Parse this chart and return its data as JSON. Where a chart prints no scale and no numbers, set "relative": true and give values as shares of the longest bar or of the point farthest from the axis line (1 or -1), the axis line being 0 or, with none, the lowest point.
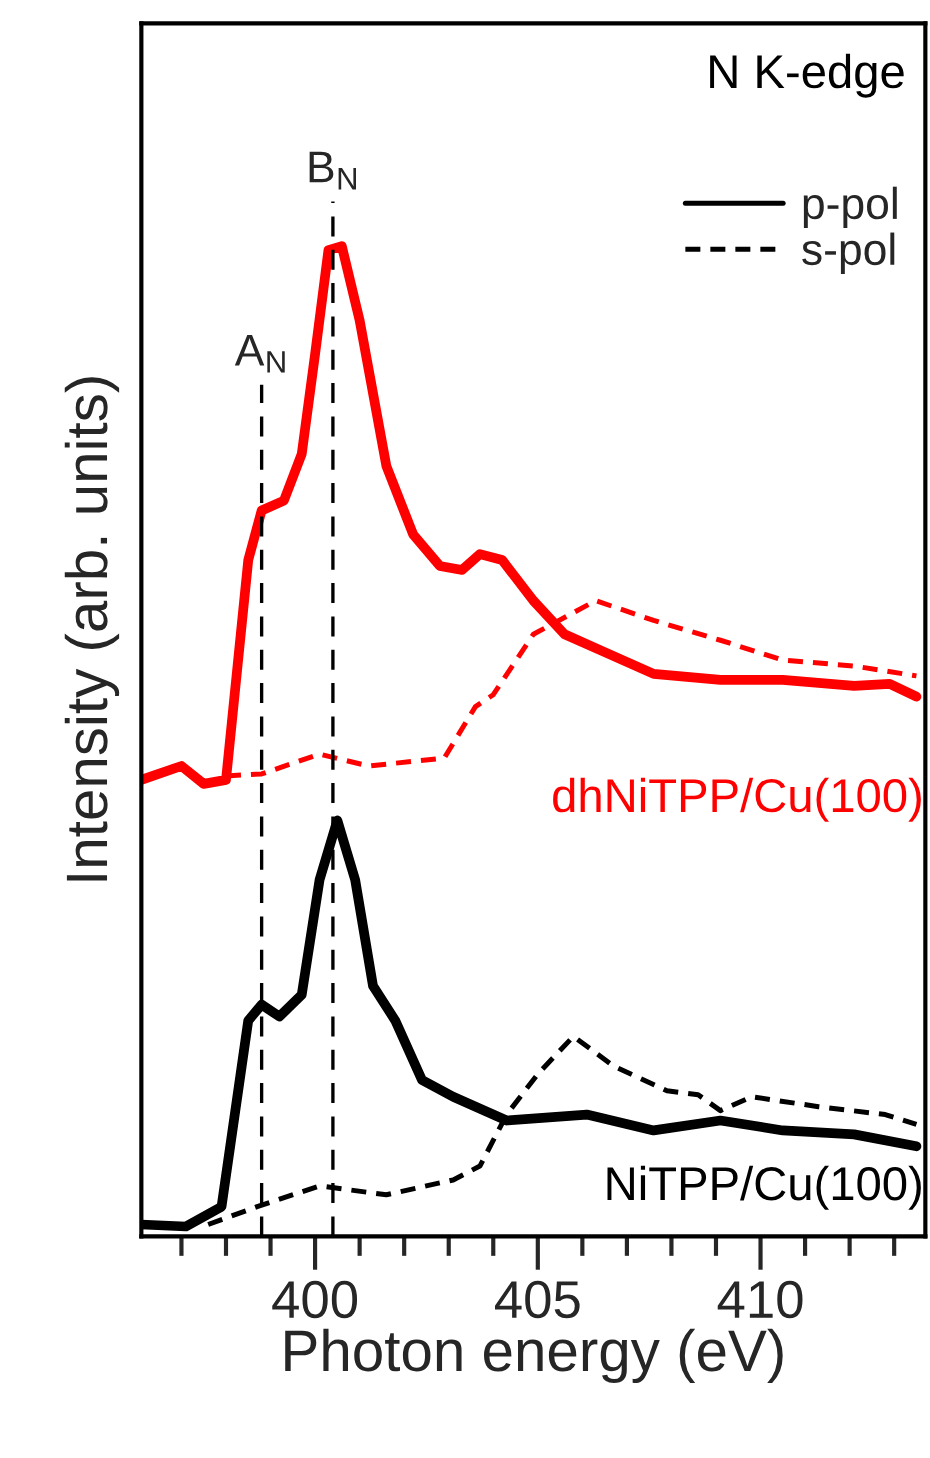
{
  "chart_data": {
    "type": "line",
    "relative": true,
    "xlabel": "Photon energy (eV)",
    "ylabel": "Intensity (arb. units)",
    "xlim": [
      396.1,
      413.7
    ],
    "xticks": [
      {
        "value": 397,
        "label": null
      },
      {
        "value": 398,
        "label": null
      },
      {
        "value": 399,
        "label": null
      },
      400,
      {
        "value": 401,
        "label": null
      },
      {
        "value": 402,
        "label": null
      },
      {
        "value": 403,
        "label": null
      },
      {
        "value": 404,
        "label": null
      },
      405,
      {
        "value": 406,
        "label": null
      },
      {
        "value": 407,
        "label": null
      },
      {
        "value": 408,
        "label": null
      },
      {
        "value": 409,
        "label": null
      },
      410,
      {
        "value": 411,
        "label": null
      },
      {
        "value": 412,
        "label": null
      },
      {
        "value": 413,
        "label": null
      }
    ],
    "grid": false,
    "legend": "top right",
    "marker": "none",
    "series": [
      {
        "color": "#ff0000",
        "line_style": "solid",
        "x": [
          396.1,
          397.0,
          397.5,
          398.0,
          398.5,
          398.8,
          399.3,
          399.7,
          400.0,
          400.3,
          400.6,
          401.0,
          401.6,
          402.2,
          402.8,
          403.3,
          403.7,
          404.2,
          404.9,
          405.6,
          406.4,
          407.6,
          409.1,
          410.5,
          412.1,
          412.9,
          413.5
        ],
        "values": [
          0.461,
          0.475,
          0.457,
          0.461,
          0.683,
          0.733,
          0.743,
          0.79,
          0.891,
          0.996,
          1.0,
          0.925,
          0.778,
          0.709,
          0.677,
          0.673,
          0.689,
          0.683,
          0.642,
          0.608,
          0.592,
          0.568,
          0.562,
          0.562,
          0.556,
          0.558,
          0.545
        ]
      },
      {
        "color": "#ff0000",
        "line_style": "dashed",
        "x": [
          398.0,
          398.8,
          400.1,
          401.2,
          402.9,
          403.6,
          404.0,
          404.9,
          406.3,
          407.6,
          409.1,
          410.5,
          412.1,
          413.5
        ],
        "values": [
          0.465,
          0.467,
          0.487,
          0.475,
          0.483,
          0.535,
          0.547,
          0.608,
          0.642,
          0.622,
          0.602,
          0.582,
          0.576,
          0.566
        ]
      },
      {
        "name": "p-pol",
        "color": "#000000",
        "line_style": "solid",
        "x": [
          396.1,
          397.1,
          397.9,
          398.5,
          398.8,
          399.2,
          399.7,
          400.1,
          400.5,
          400.9,
          401.3,
          401.8,
          402.4,
          403.1,
          404.3,
          406.1,
          407.6,
          409.1,
          410.5,
          412.1,
          413.5
        ],
        "values": [
          0.012,
          0.01,
          0.03,
          0.218,
          0.234,
          0.222,
          0.244,
          0.36,
          0.42,
          0.36,
          0.253,
          0.218,
          0.158,
          0.141,
          0.117,
          0.123,
          0.107,
          0.117,
          0.107,
          0.103,
          0.091
        ]
      },
      {
        "name": "s-pol",
        "color": "#000000",
        "line_style": "dashed",
        "x": [
          397.6,
          398.7,
          400.1,
          401.6,
          403.1,
          403.7,
          404.3,
          405.0,
          405.8,
          406.7,
          407.9,
          408.6,
          409.1,
          409.8,
          411.3,
          412.8,
          413.5
        ],
        "values": [
          0.012,
          0.03,
          0.051,
          0.042,
          0.057,
          0.071,
          0.123,
          0.164,
          0.202,
          0.172,
          0.147,
          0.143,
          0.127,
          0.141,
          0.131,
          0.123,
          0.113
        ]
      }
    ],
    "ref_lines": [
      {
        "axis": "x",
        "value": 398.8,
        "label": "A$_{N}$",
        "line_style": "dashed",
        "color": "#000000"
      },
      {
        "axis": "x",
        "value": 400.4,
        "label": "B$_{N}$",
        "line_style": "dashed",
        "color": "#000000"
      }
    ],
    "annotations": [
      "N K-edge",
      "dhNiTPP/Cu(100)",
      "NiTPP/Cu(100)"
    ]
  }
}
